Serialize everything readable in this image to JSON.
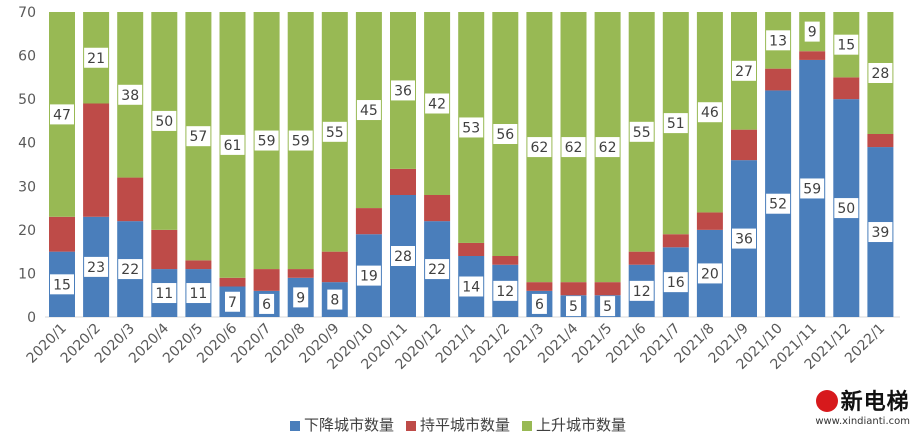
{
  "chart_data": {
    "type": "bar",
    "stacked": true,
    "categories": [
      "2020/1",
      "2020/2",
      "2020/3",
      "2020/4",
      "2020/5",
      "2020/6",
      "2020/7",
      "2020/8",
      "2020/9",
      "2020/10",
      "2020/11",
      "2020/12",
      "2021/1",
      "2021/2",
      "2021/3",
      "2021/4",
      "2021/5",
      "2021/6",
      "2021/7",
      "2021/8",
      "2021/9",
      "2021/10",
      "2021/11",
      "2021/12",
      "2022/1"
    ],
    "series": [
      {
        "name": "下降城市数量",
        "color": "#4a7ebb",
        "values": [
          15,
          23,
          22,
          11,
          11,
          7,
          6,
          9,
          8,
          19,
          28,
          22,
          14,
          12,
          6,
          5,
          5,
          12,
          16,
          20,
          36,
          52,
          59,
          50,
          39
        ],
        "labeled": true
      },
      {
        "name": "持平城市数量",
        "color": "#be4b48",
        "values": [
          8,
          26,
          10,
          9,
          2,
          2,
          5,
          2,
          7,
          6,
          6,
          6,
          3,
          2,
          2,
          3,
          3,
          3,
          3,
          4,
          7,
          5,
          2,
          5,
          3
        ],
        "labeled": false
      },
      {
        "name": "上升城市数量",
        "color": "#98b954",
        "values": [
          47,
          21,
          38,
          50,
          57,
          61,
          59,
          59,
          55,
          45,
          36,
          42,
          53,
          56,
          62,
          62,
          62,
          55,
          51,
          46,
          27,
          13,
          9,
          15,
          28
        ],
        "labeled": true
      }
    ],
    "ylim": [
      0,
      70
    ],
    "yticks": [
      0,
      10,
      20,
      30,
      40,
      50,
      60,
      70
    ],
    "grid": false,
    "legend": "bottom"
  },
  "watermark": {
    "brand": "新电梯",
    "url": "www.xindianti.com"
  }
}
